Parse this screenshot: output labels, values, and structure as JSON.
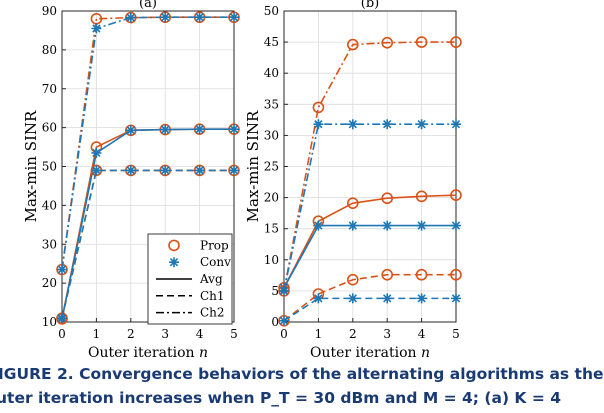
{
  "caption": {
    "line1": "IGURE 2.  Convergence behaviors of the alternating algorithms as the",
    "line2": "uter iteration increases when P_T = 30 dBm and M = 4; (a) K = 4"
  },
  "chart_data": [
    {
      "type": "line",
      "panel_label": "(a)",
      "xlabel": "Outer iteration n",
      "ylabel": "Max-min SINR",
      "xlim": [
        0,
        5
      ],
      "ylim": [
        10,
        90
      ],
      "x_ticks": [
        0,
        1,
        2,
        3,
        4,
        5
      ],
      "y_ticks": [
        10,
        20,
        30,
        40,
        50,
        60,
        70,
        80,
        90
      ],
      "grid": true,
      "x": [
        0,
        1,
        2,
        3,
        4,
        5
      ],
      "legend": {
        "position": "bottom-right",
        "entries": [
          {
            "label": "Prop",
            "marker": "circle",
            "color": "#d95319"
          },
          {
            "label": "Conv",
            "marker": "asterisk",
            "color": "#1f77b4"
          },
          {
            "label": "Avg",
            "line": "solid"
          },
          {
            "label": "Ch1",
            "line": "dashed"
          },
          {
            "label": "Ch2",
            "line": "dashdot"
          }
        ]
      },
      "series": [
        {
          "algorithm": "Prop",
          "metric": "Avg",
          "color": "#d95319",
          "linestyle": "solid",
          "marker": "circle",
          "values": [
            10.8,
            55.0,
            59.3,
            59.5,
            59.6,
            59.6
          ]
        },
        {
          "algorithm": "Conv",
          "metric": "Avg",
          "color": "#1f77b4",
          "linestyle": "solid",
          "marker": "asterisk",
          "values": [
            10.8,
            53.5,
            59.3,
            59.5,
            59.6,
            59.6
          ]
        },
        {
          "algorithm": "Prop",
          "metric": "Ch1",
          "color": "#d95319",
          "linestyle": "dashed",
          "marker": "circle",
          "values": [
            11.0,
            49.0,
            49.0,
            49.0,
            49.0,
            49.0
          ]
        },
        {
          "algorithm": "Conv",
          "metric": "Ch1",
          "color": "#1f77b4",
          "linestyle": "dashed",
          "marker": "asterisk",
          "values": [
            11.0,
            49.0,
            49.0,
            49.0,
            49.0,
            49.0
          ]
        },
        {
          "algorithm": "Prop",
          "metric": "Ch2",
          "color": "#d95319",
          "linestyle": "dashdot",
          "marker": "circle",
          "values": [
            23.5,
            88.0,
            88.3,
            88.4,
            88.4,
            88.4
          ]
        },
        {
          "algorithm": "Conv",
          "metric": "Ch2",
          "color": "#1f77b4",
          "linestyle": "dashdot",
          "marker": "asterisk",
          "values": [
            23.5,
            85.5,
            88.3,
            88.4,
            88.4,
            88.4
          ]
        }
      ]
    },
    {
      "type": "line",
      "panel_label": "(b)",
      "xlabel": "Outer iteration n",
      "ylabel": "Max-min SINR",
      "xlim": [
        0,
        5
      ],
      "ylim": [
        0,
        50
      ],
      "x_ticks": [
        0,
        1,
        2,
        3,
        4,
        5
      ],
      "y_ticks": [
        0,
        5,
        10,
        15,
        20,
        25,
        30,
        35,
        40,
        45,
        50
      ],
      "grid": true,
      "x": [
        0,
        1,
        2,
        3,
        4,
        5
      ],
      "series": [
        {
          "algorithm": "Prop",
          "metric": "Avg",
          "color": "#d95319",
          "linestyle": "solid",
          "marker": "circle",
          "values": [
            5.5,
            16.2,
            19.1,
            19.9,
            20.2,
            20.4
          ]
        },
        {
          "algorithm": "Conv",
          "metric": "Avg",
          "color": "#1f77b4",
          "linestyle": "solid",
          "marker": "asterisk",
          "values": [
            5.5,
            15.5,
            15.5,
            15.5,
            15.5,
            15.5
          ]
        },
        {
          "algorithm": "Prop",
          "metric": "Ch1",
          "color": "#d95319",
          "linestyle": "dashed",
          "marker": "circle",
          "values": [
            0.2,
            4.5,
            6.8,
            7.6,
            7.6,
            7.6
          ]
        },
        {
          "algorithm": "Conv",
          "metric": "Ch1",
          "color": "#1f77b4",
          "linestyle": "dashed",
          "marker": "asterisk",
          "values": [
            0.2,
            3.8,
            3.8,
            3.8,
            3.8,
            3.8
          ]
        },
        {
          "algorithm": "Prop",
          "metric": "Ch2",
          "color": "#d95319",
          "linestyle": "dashdot",
          "marker": "circle",
          "values": [
            5.0,
            34.5,
            44.6,
            44.9,
            45.0,
            45.0
          ]
        },
        {
          "algorithm": "Conv",
          "metric": "Ch2",
          "color": "#1f77b4",
          "linestyle": "dashdot",
          "marker": "asterisk",
          "values": [
            5.0,
            31.8,
            31.8,
            31.8,
            31.8,
            31.8
          ]
        }
      ]
    }
  ]
}
